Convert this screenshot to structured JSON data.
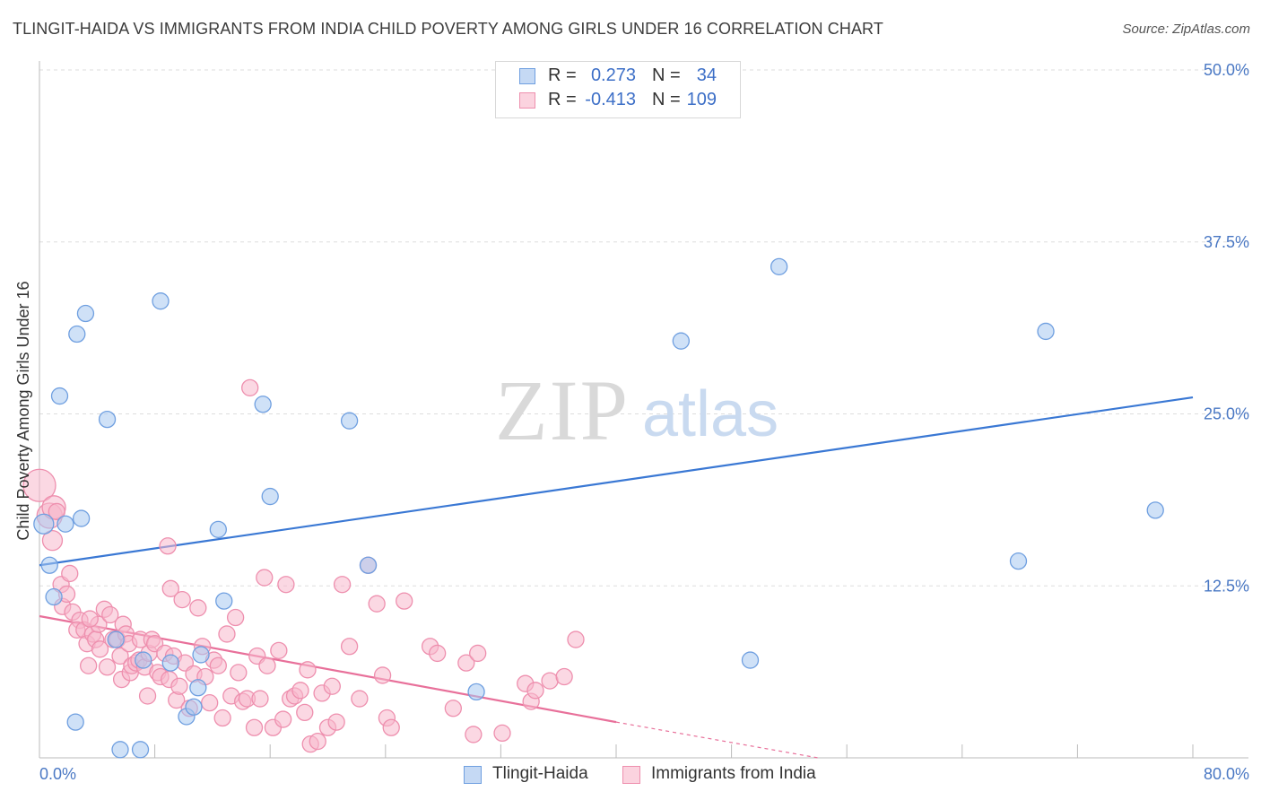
{
  "title": "TLINGIT-HAIDA VS IMMIGRANTS FROM INDIA CHILD POVERTY AMONG GIRLS UNDER 16 CORRELATION CHART",
  "source": "Source: ZipAtlas.com",
  "watermark": {
    "zip": "ZIP",
    "atlas": "atlas"
  },
  "colors": {
    "blue_fill": "#a8c8f0",
    "blue_stroke": "#6f9fe0",
    "blue_line": "#3a78d4",
    "pink_fill": "#f7b8cc",
    "pink_stroke": "#ee8fae",
    "pink_line": "#e8709a",
    "tick": "#4a78c4"
  },
  "legend": {
    "rows": [
      {
        "r_label": "R =",
        "r_value": "0.273",
        "n_label": "N =",
        "n_value": "34"
      },
      {
        "r_label": "R =",
        "r_value": "-0.413",
        "n_label": "N =",
        "n_value": "109"
      }
    ],
    "bottom": [
      "Tlingit-Haida",
      "Immigrants from India"
    ]
  },
  "chart_data": {
    "type": "scatter",
    "title": "TLINGIT-HAIDA VS IMMIGRANTS FROM INDIA CHILD POVERTY AMONG GIRLS UNDER 16 CORRELATION CHART",
    "xlabel": "",
    "ylabel": "Child Poverty Among Girls Under 16",
    "xlim": [
      0,
      80
    ],
    "ylim": [
      0,
      50
    ],
    "x_tick_labels": [
      "0.0%",
      "80.0%"
    ],
    "y_tick_labels": [
      "12.5%",
      "25.0%",
      "37.5%",
      "50.0%"
    ],
    "y_ticks": [
      12.5,
      25.0,
      37.5,
      50.0
    ],
    "grid": true,
    "legend_position": "top-center",
    "series": [
      {
        "name": "Tlingit-Haida",
        "r": 0.273,
        "n": 34,
        "trend": {
          "x": [
            0,
            80
          ],
          "y": [
            14.0,
            26.2
          ],
          "dashed_from": null
        },
        "points": [
          [
            0.3,
            17.0,
            11
          ],
          [
            0.7,
            14.0,
            9
          ],
          [
            1.0,
            11.7,
            9
          ],
          [
            1.8,
            17.0,
            9
          ],
          [
            2.5,
            2.6,
            9
          ],
          [
            2.6,
            30.8,
            9
          ],
          [
            1.4,
            26.3,
            9
          ],
          [
            3.2,
            32.3,
            9
          ],
          [
            2.9,
            17.4,
            9
          ],
          [
            4.7,
            24.6,
            9
          ],
          [
            5.3,
            8.6,
            9
          ],
          [
            5.6,
            0.6,
            9
          ],
          [
            7.0,
            0.6,
            9
          ],
          [
            7.2,
            7.1,
            9
          ],
          [
            8.4,
            33.2,
            9
          ],
          [
            9.1,
            6.9,
            9
          ],
          [
            10.2,
            3.0,
            9
          ],
          [
            10.7,
            3.7,
            9
          ],
          [
            11.0,
            5.1,
            9
          ],
          [
            11.2,
            7.5,
            9
          ],
          [
            12.4,
            16.6,
            9
          ],
          [
            12.8,
            11.4,
            9
          ],
          [
            15.5,
            25.7,
            9
          ],
          [
            16.0,
            19.0,
            9
          ],
          [
            21.5,
            24.5,
            9
          ],
          [
            22.8,
            14.0,
            9
          ],
          [
            30.3,
            4.8,
            9
          ],
          [
            36.8,
            50.0,
            9
          ],
          [
            44.5,
            30.3,
            9
          ],
          [
            49.3,
            7.1,
            9
          ],
          [
            51.3,
            35.7,
            9
          ],
          [
            67.9,
            14.3,
            9
          ],
          [
            69.8,
            31.0,
            9
          ],
          [
            77.4,
            18.0,
            9
          ]
        ]
      },
      {
        "name": "Immigrants from India",
        "r": -0.413,
        "n": 109,
        "trend": {
          "x": [
            0,
            40,
            54
          ],
          "y": [
            10.3,
            2.6,
            0.0
          ],
          "dashed_from": 40
        },
        "points": [
          [
            0.0,
            19.8,
            18
          ],
          [
            0.7,
            17.6,
            14
          ],
          [
            1.0,
            18.2,
            13
          ],
          [
            0.9,
            15.8,
            11
          ],
          [
            1.5,
            12.6,
            9
          ],
          [
            1.6,
            11.0,
            9
          ],
          [
            1.9,
            11.9,
            9
          ],
          [
            2.1,
            13.4,
            9
          ],
          [
            2.3,
            10.6,
            9
          ],
          [
            2.8,
            10.0,
            9
          ],
          [
            2.6,
            9.3,
            9
          ],
          [
            3.1,
            9.3,
            9
          ],
          [
            3.3,
            8.3,
            9
          ],
          [
            3.4,
            6.7,
            9
          ],
          [
            3.7,
            9.0,
            9
          ],
          [
            3.9,
            8.6,
            9
          ],
          [
            4.2,
            7.9,
            9
          ],
          [
            4.1,
            9.7,
            9
          ],
          [
            4.5,
            10.8,
            9
          ],
          [
            4.7,
            6.6,
            9
          ],
          [
            4.9,
            10.4,
            9
          ],
          [
            5.1,
            8.6,
            9
          ],
          [
            5.4,
            8.6,
            9
          ],
          [
            5.6,
            7.4,
            9
          ],
          [
            5.7,
            5.7,
            9
          ],
          [
            5.8,
            9.7,
            9
          ],
          [
            6.0,
            9.0,
            9
          ],
          [
            6.2,
            8.3,
            9
          ],
          [
            6.3,
            6.2,
            9
          ],
          [
            6.4,
            6.7,
            9
          ],
          [
            6.7,
            6.9,
            9
          ],
          [
            6.9,
            7.1,
            9
          ],
          [
            7.0,
            8.6,
            9
          ],
          [
            7.3,
            6.6,
            9
          ],
          [
            7.5,
            4.5,
            9
          ],
          [
            7.6,
            7.6,
            9
          ],
          [
            7.8,
            8.6,
            9
          ],
          [
            8.0,
            8.3,
            9
          ],
          [
            8.2,
            6.2,
            9
          ],
          [
            8.4,
            5.9,
            9
          ],
          [
            8.7,
            7.6,
            9
          ],
          [
            9.0,
            5.7,
            9
          ],
          [
            9.1,
            12.3,
            9
          ],
          [
            9.3,
            7.4,
            9
          ],
          [
            9.5,
            4.2,
            9
          ],
          [
            9.7,
            5.2,
            9
          ],
          [
            9.9,
            11.5,
            9
          ],
          [
            10.1,
            6.9,
            9
          ],
          [
            10.4,
            3.6,
            9
          ],
          [
            10.7,
            6.1,
            9
          ],
          [
            11.0,
            10.9,
            9
          ],
          [
            11.3,
            8.1,
            9
          ],
          [
            11.5,
            5.9,
            9
          ],
          [
            11.8,
            4.0,
            9
          ],
          [
            12.1,
            7.1,
            9
          ],
          [
            12.4,
            6.7,
            9
          ],
          [
            12.7,
            2.9,
            9
          ],
          [
            13.0,
            9.0,
            9
          ],
          [
            13.3,
            4.5,
            9
          ],
          [
            13.6,
            10.2,
            9
          ],
          [
            13.8,
            6.2,
            9
          ],
          [
            14.1,
            4.1,
            9
          ],
          [
            14.4,
            4.3,
            9
          ],
          [
            14.6,
            26.9,
            9
          ],
          [
            14.9,
            2.2,
            9
          ],
          [
            15.1,
            7.4,
            9
          ],
          [
            15.3,
            4.3,
            9
          ],
          [
            15.6,
            13.1,
            9
          ],
          [
            15.8,
            6.7,
            9
          ],
          [
            16.2,
            2.2,
            9
          ],
          [
            16.6,
            7.8,
            9
          ],
          [
            16.9,
            2.8,
            9
          ],
          [
            17.1,
            12.6,
            9
          ],
          [
            17.4,
            4.3,
            9
          ],
          [
            17.7,
            4.5,
            9
          ],
          [
            18.1,
            4.9,
            9
          ],
          [
            18.4,
            3.3,
            9
          ],
          [
            18.6,
            6.4,
            9
          ],
          [
            18.8,
            1.0,
            9
          ],
          [
            19.3,
            1.2,
            9
          ],
          [
            19.6,
            4.7,
            9
          ],
          [
            20.0,
            2.2,
            9
          ],
          [
            20.3,
            5.2,
            9
          ],
          [
            20.6,
            2.6,
            9
          ],
          [
            21.0,
            12.6,
            9
          ],
          [
            21.5,
            8.1,
            9
          ],
          [
            22.2,
            4.3,
            9
          ],
          [
            22.8,
            14.0,
            9
          ],
          [
            23.4,
            11.2,
            9
          ],
          [
            23.8,
            6.0,
            9
          ],
          [
            24.1,
            2.9,
            9
          ],
          [
            24.4,
            2.2,
            9
          ],
          [
            25.3,
            11.4,
            9
          ],
          [
            27.1,
            8.1,
            9
          ],
          [
            27.6,
            7.6,
            9
          ],
          [
            28.7,
            3.6,
            9
          ],
          [
            29.6,
            6.9,
            9
          ],
          [
            30.1,
            1.7,
            9
          ],
          [
            30.4,
            7.6,
            9
          ],
          [
            32.1,
            1.8,
            9
          ],
          [
            33.7,
            5.4,
            9
          ],
          [
            34.1,
            4.1,
            9
          ],
          [
            34.4,
            4.9,
            9
          ],
          [
            35.4,
            5.6,
            9
          ],
          [
            36.4,
            5.9,
            9
          ],
          [
            37.2,
            8.6,
            9
          ],
          [
            8.9,
            15.4,
            9
          ],
          [
            1.2,
            17.9,
            9
          ],
          [
            3.5,
            10.1,
            9
          ]
        ]
      }
    ]
  }
}
